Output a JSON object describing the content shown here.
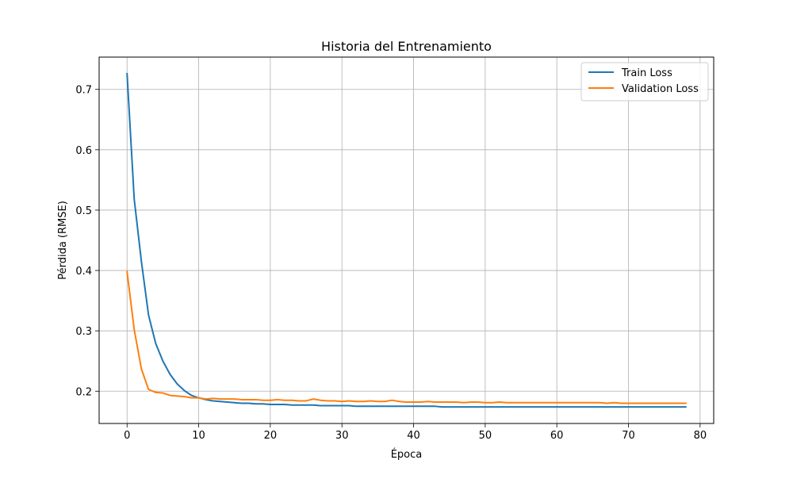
{
  "chart_data": {
    "type": "line",
    "title": "Historia del Entrenamiento",
    "xlabel": "Época",
    "ylabel": "Pérdida (RMSE)",
    "xlim": [
      -3.9,
      81.9
    ],
    "ylim": [
      0.1465,
      0.7535
    ],
    "xticks": [
      0,
      10,
      20,
      30,
      40,
      50,
      60,
      70,
      80
    ],
    "yticks": [
      0.2,
      0.3,
      0.4,
      0.5,
      0.6,
      0.7
    ],
    "grid": true,
    "legend_position": "top-right",
    "series": [
      {
        "name": "Train Loss",
        "color": "#1f77b4",
        "x": [
          0,
          1,
          2,
          3,
          4,
          5,
          6,
          7,
          8,
          9,
          10,
          11,
          12,
          13,
          14,
          15,
          16,
          17,
          18,
          19,
          20,
          21,
          22,
          23,
          24,
          25,
          26,
          27,
          28,
          29,
          30,
          31,
          32,
          33,
          34,
          35,
          36,
          37,
          38,
          39,
          40,
          41,
          42,
          43,
          44,
          45,
          46,
          47,
          48,
          49,
          50,
          51,
          52,
          53,
          54,
          55,
          56,
          57,
          58,
          59,
          60,
          61,
          62,
          63,
          64,
          65,
          66,
          67,
          68,
          69,
          70,
          71,
          72,
          73,
          74,
          75,
          76,
          77,
          78
        ],
        "y": [
          0.726,
          0.518,
          0.415,
          0.326,
          0.279,
          0.25,
          0.228,
          0.212,
          0.201,
          0.193,
          0.189,
          0.186,
          0.184,
          0.183,
          0.182,
          0.181,
          0.18,
          0.18,
          0.179,
          0.179,
          0.178,
          0.178,
          0.178,
          0.177,
          0.177,
          0.177,
          0.177,
          0.176,
          0.176,
          0.176,
          0.176,
          0.176,
          0.175,
          0.175,
          0.175,
          0.175,
          0.175,
          0.175,
          0.175,
          0.175,
          0.175,
          0.175,
          0.175,
          0.175,
          0.174,
          0.174,
          0.174,
          0.174,
          0.174,
          0.174,
          0.174,
          0.174,
          0.174,
          0.174,
          0.174,
          0.174,
          0.174,
          0.174,
          0.174,
          0.174,
          0.174,
          0.174,
          0.174,
          0.174,
          0.174,
          0.174,
          0.174,
          0.174,
          0.174,
          0.174,
          0.174,
          0.174,
          0.174,
          0.174,
          0.174,
          0.174,
          0.174,
          0.174,
          0.174
        ]
      },
      {
        "name": "Validation Loss",
        "color": "#ff7f0e",
        "x": [
          0,
          1,
          2,
          3,
          4,
          5,
          6,
          7,
          8,
          9,
          10,
          11,
          12,
          13,
          14,
          15,
          16,
          17,
          18,
          19,
          20,
          21,
          22,
          23,
          24,
          25,
          26,
          27,
          28,
          29,
          30,
          31,
          32,
          33,
          34,
          35,
          36,
          37,
          38,
          39,
          40,
          41,
          42,
          43,
          44,
          45,
          46,
          47,
          48,
          49,
          50,
          51,
          52,
          53,
          54,
          55,
          56,
          57,
          58,
          59,
          60,
          61,
          62,
          63,
          64,
          65,
          66,
          67,
          68,
          69,
          70,
          71,
          72,
          73,
          74,
          75,
          76,
          77,
          78
        ],
        "y": [
          0.398,
          0.302,
          0.237,
          0.203,
          0.198,
          0.197,
          0.193,
          0.192,
          0.191,
          0.189,
          0.189,
          0.187,
          0.188,
          0.187,
          0.187,
          0.187,
          0.186,
          0.186,
          0.186,
          0.185,
          0.185,
          0.186,
          0.185,
          0.185,
          0.184,
          0.184,
          0.187,
          0.185,
          0.184,
          0.184,
          0.183,
          0.184,
          0.183,
          0.183,
          0.184,
          0.183,
          0.183,
          0.185,
          0.183,
          0.182,
          0.182,
          0.182,
          0.183,
          0.182,
          0.182,
          0.182,
          0.182,
          0.181,
          0.182,
          0.182,
          0.181,
          0.181,
          0.182,
          0.181,
          0.181,
          0.181,
          0.181,
          0.181,
          0.181,
          0.181,
          0.181,
          0.181,
          0.181,
          0.181,
          0.181,
          0.181,
          0.181,
          0.18,
          0.181,
          0.18,
          0.18,
          0.18,
          0.18,
          0.18,
          0.18,
          0.18,
          0.18,
          0.18,
          0.18
        ]
      }
    ]
  }
}
